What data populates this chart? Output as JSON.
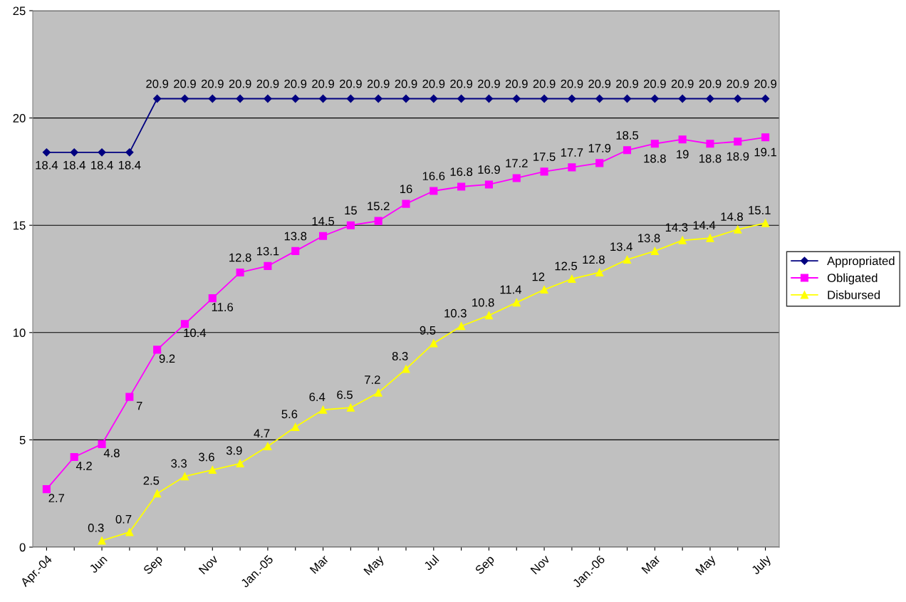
{
  "chart_data": {
    "type": "line",
    "categories": [
      "Apr.-04",
      null,
      "Jun",
      null,
      "Sep",
      null,
      "Nov",
      null,
      "Jan.-05",
      null,
      "Mar",
      null,
      "May",
      null,
      "Jul",
      null,
      "Sep",
      null,
      "Nov",
      null,
      "Jan.-06",
      null,
      "Mar",
      null,
      "May",
      null,
      "July"
    ],
    "series": [
      {
        "name": "Appropriated",
        "color": "#000080",
        "marker": "diamond",
        "values": [
          18.4,
          18.4,
          18.4,
          18.4,
          20.9,
          20.9,
          20.9,
          20.9,
          20.9,
          20.9,
          20.9,
          20.9,
          20.9,
          20.9,
          20.9,
          20.9,
          20.9,
          20.9,
          20.9,
          20.9,
          20.9,
          20.9,
          20.9,
          20.9,
          20.9,
          20.9,
          20.9
        ]
      },
      {
        "name": "Obligated",
        "color": "#ff00ff",
        "marker": "square",
        "values": [
          2.7,
          4.2,
          4.8,
          7,
          9.2,
          10.4,
          11.6,
          12.8,
          13.1,
          13.8,
          14.5,
          15,
          15.2,
          16,
          16.6,
          16.8,
          16.9,
          17.2,
          17.5,
          17.7,
          17.9,
          18.5,
          18.8,
          19,
          18.8,
          18.9,
          19.1
        ]
      },
      {
        "name": "Disbursed",
        "color": "#ffff00",
        "marker": "triangle",
        "values": [
          null,
          null,
          0.3,
          0.7,
          2.5,
          3.3,
          3.6,
          3.9,
          4.7,
          5.6,
          6.4,
          6.5,
          7.2,
          8.3,
          9.5,
          10.3,
          10.8,
          11.4,
          12,
          12.5,
          12.8,
          13.4,
          13.8,
          14.3,
          14.4,
          14.8,
          15.1
        ]
      }
    ],
    "ylim": [
      0,
      25
    ],
    "yticks": [
      0,
      5,
      10,
      15,
      20,
      25
    ],
    "grid": "y",
    "legend": "right",
    "data_labels": true,
    "line_style": "solid"
  }
}
